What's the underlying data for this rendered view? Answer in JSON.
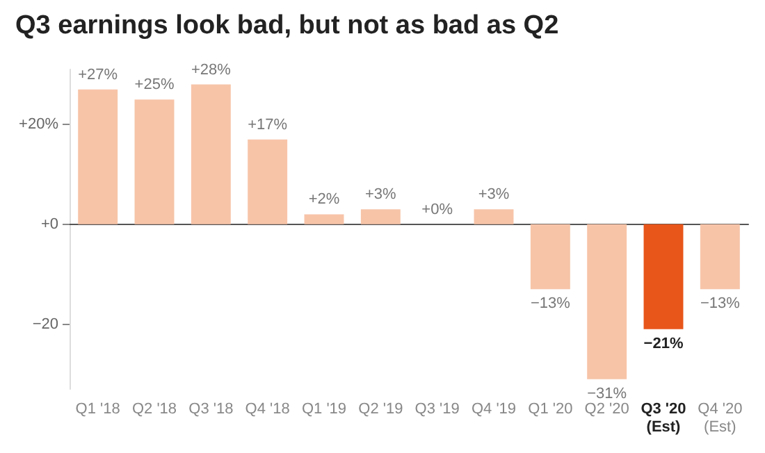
{
  "chart_data": {
    "type": "bar",
    "title": "Q3 earnings look bad, but not as bad as Q2",
    "categories": [
      "Q1 '18",
      "Q2 '18",
      "Q3 '18",
      "Q4 '18",
      "Q1 '19",
      "Q2 '19",
      "Q3 '19",
      "Q4 '19",
      "Q1 '20",
      "Q2 '20",
      "Q3 '20\n(Est)",
      "Q4 '20\n(Est)"
    ],
    "values": [
      27,
      25,
      28,
      17,
      2,
      3,
      0,
      3,
      -13,
      -31,
      -21,
      -13
    ],
    "value_labels": [
      "+27%",
      "+25%",
      "+28%",
      "+17%",
      "+2%",
      "+3%",
      "+0%",
      "+3%",
      "−13%",
      "−31%",
      "−21%",
      "−13%"
    ],
    "colors": [
      "#f7c4a8",
      "#f7c4a8",
      "#f7c4a8",
      "#f7c4a8",
      "#f7c4a8",
      "#f7c4a8",
      "#f7c4a8",
      "#f7c4a8",
      "#f7c4a8",
      "#f7c4a8",
      "#e8561a",
      "#f7c4a8"
    ],
    "ylim": [
      -33,
      31
    ],
    "yticks": [
      {
        "value": 20,
        "label": "+20%"
      },
      {
        "value": 0,
        "label": "+0"
      },
      {
        "value": -20,
        "label": "−20"
      }
    ]
  }
}
